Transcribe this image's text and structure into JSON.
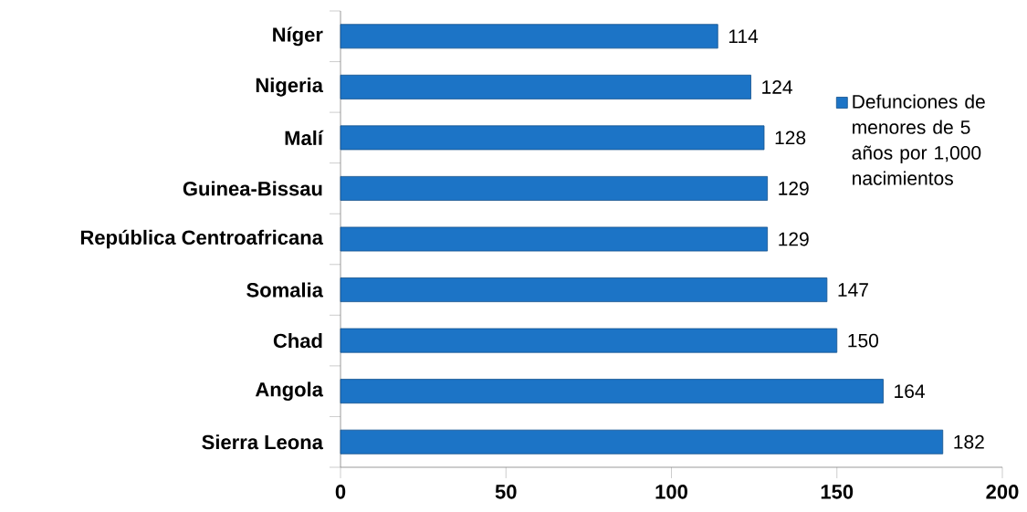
{
  "chart_data": {
    "type": "bar",
    "orientation": "horizontal",
    "categories": [
      "Níger",
      "Nigeria",
      "Malí",
      "Guinea-Bissau",
      "República Centroafricana",
      "Somalia",
      "Chad",
      "Angola",
      "Sierra Leona"
    ],
    "series": [
      {
        "name": "Defunciones de menores de 5 años por 1,000 nacimientos",
        "color": "#1c74c6",
        "values": [
          114,
          124,
          128,
          129,
          129,
          147,
          150,
          164,
          182
        ]
      }
    ],
    "xlim": [
      0,
      200
    ],
    "xticks": [
      0,
      50,
      100,
      150,
      200
    ],
    "data_labels": true,
    "legend": "right",
    "grid": false
  }
}
